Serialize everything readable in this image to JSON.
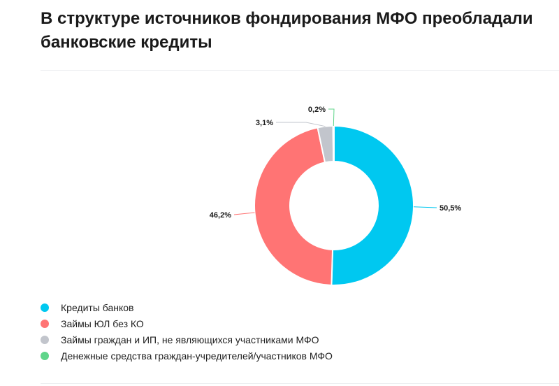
{
  "title": "В структуре источников фондирования МФО преобладали банковские кредиты",
  "chart_data": {
    "type": "pie",
    "donut": true,
    "unit": "%",
    "categories": [
      "Кредиты банков",
      "Займы ЮЛ без КО",
      "Займы граждан и ИП, не являющихся участниками МФО",
      "Денежные средства граждан-учредителей/участников МФО"
    ],
    "values": [
      50.5,
      46.2,
      3.1,
      0.2
    ],
    "labels": [
      "50,5%",
      "46,2%",
      "3,1%",
      "0,2%"
    ],
    "colors": [
      "#00c8f0",
      "#ff7474",
      "#c2c5cc",
      "#5fd58a"
    ],
    "legend_position": "bottom-left"
  }
}
